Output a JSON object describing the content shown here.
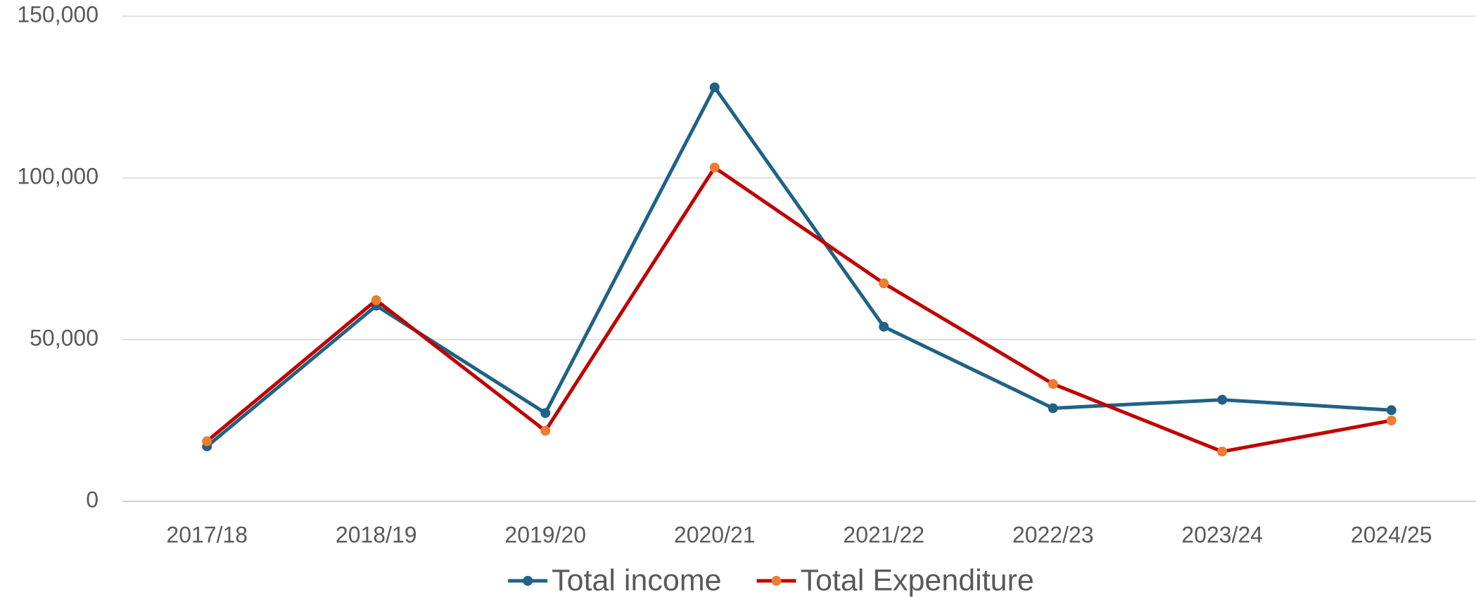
{
  "chart_data": {
    "type": "line",
    "categories": [
      "2017/18",
      "2018/19",
      "2019/20",
      "2020/21",
      "2021/22",
      "2022/23",
      "2023/24",
      "2024/25"
    ],
    "series": [
      {
        "name": "Total income",
        "color": "#1f6286",
        "marker_color": "#1f6286",
        "values": [
          17000,
          60500,
          27300,
          128000,
          54000,
          28800,
          31400,
          28200
        ]
      },
      {
        "name": "Total Expenditure",
        "color": "#c00000",
        "marker_color": "#ed7d31",
        "values": [
          18600,
          62200,
          21800,
          103200,
          67400,
          36300,
          15400,
          25000
        ]
      }
    ],
    "ylim": [
      0,
      150000
    ],
    "yticks": [
      0,
      {
        "value": 50000,
        "label": "50,000"
      },
      {
        "value": 100000,
        "label": "100,000"
      },
      {
        "value": 150000,
        "label": "150,000"
      }
    ],
    "grid": true,
    "legend": "bottom"
  }
}
